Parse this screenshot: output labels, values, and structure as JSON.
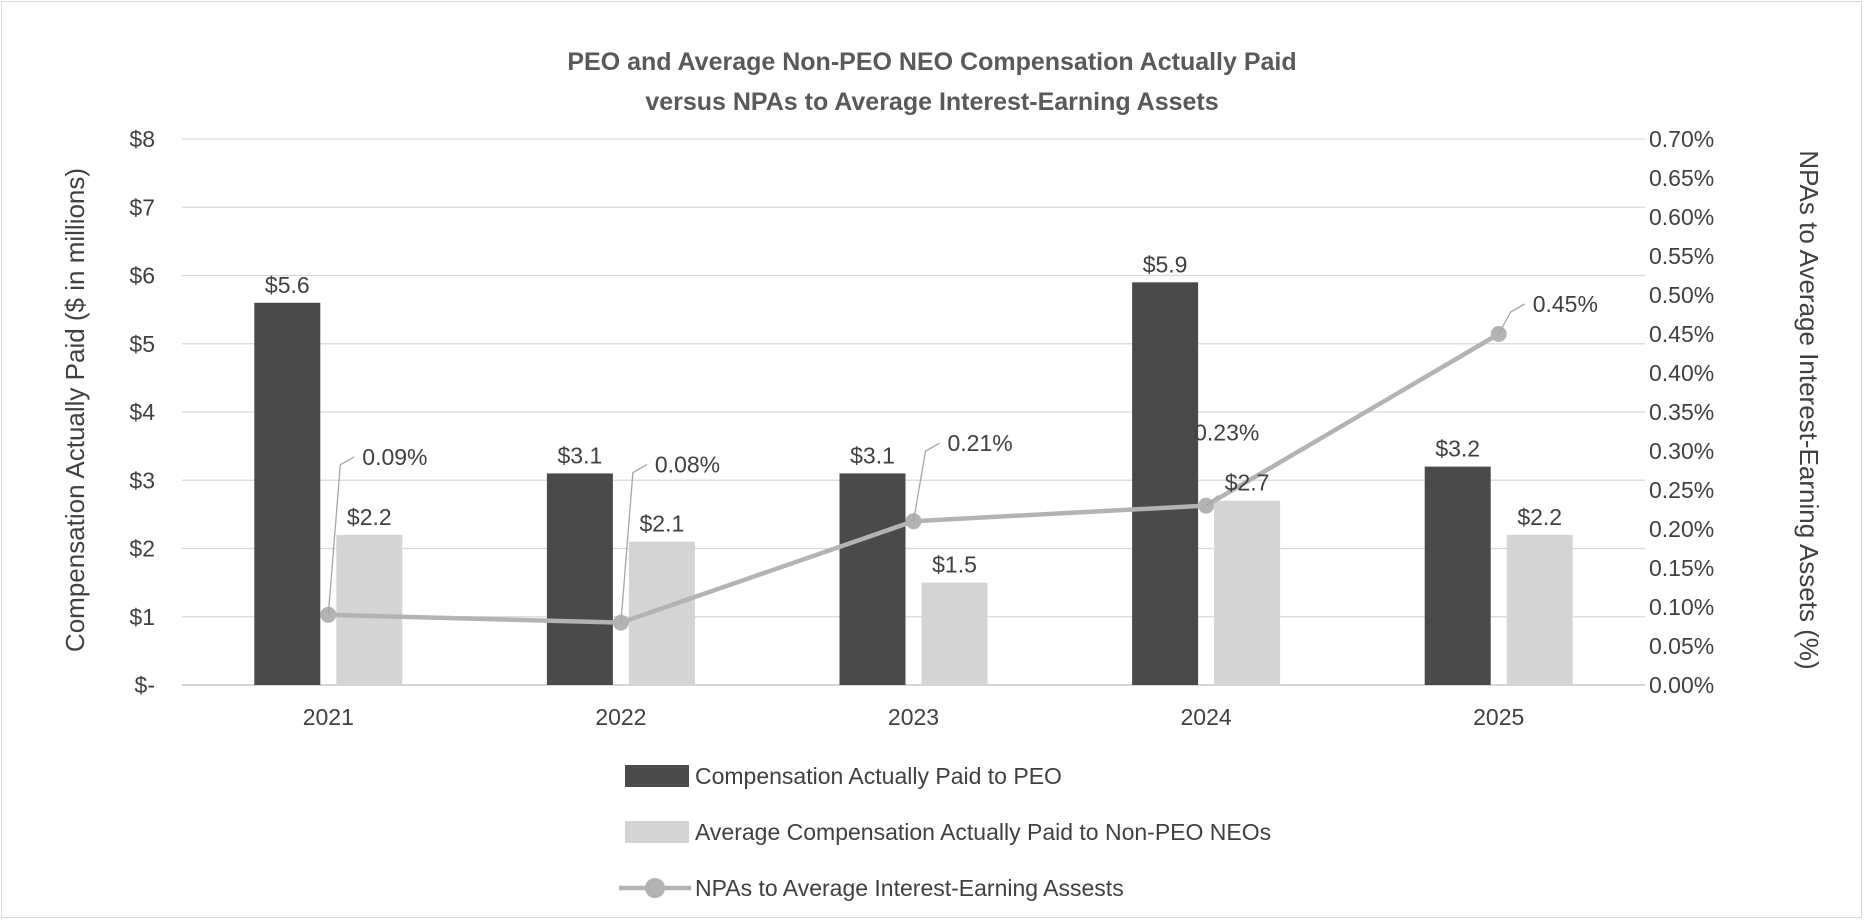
{
  "chart_data": {
    "type": "bar",
    "title": "PEO and Average Non-PEO NEO Compensation Actually Paid",
    "subtitle": "versus NPAs to Average Interest-Earning Assets",
    "ylabel": "Compensation Actually Paid ($ in millions)",
    "y2label": "NPAs to Average Interest-Earning Assets (%)",
    "categories": [
      "2021",
      "2022",
      "2023",
      "2024",
      "2025"
    ],
    "ylim": [
      0,
      8
    ],
    "y2lim": [
      0,
      0.7
    ],
    "yticks": [
      "$-",
      "$1",
      "$2",
      "$3",
      "$4",
      "$5",
      "$6",
      "$7",
      "$8"
    ],
    "y2ticks": [
      "0.00%",
      "0.05%",
      "0.10%",
      "0.15%",
      "0.20%",
      "0.25%",
      "0.30%",
      "0.35%",
      "0.40%",
      "0.45%",
      "0.50%",
      "0.55%",
      "0.60%",
      "0.65%",
      "0.70%"
    ],
    "grid": true,
    "legend_position": "bottom",
    "series": [
      {
        "name": "Compensation Actually Paid to PEO",
        "kind": "bar",
        "axis": "left",
        "color": "#4a4a4a",
        "values": [
          5.6,
          3.1,
          3.1,
          5.9,
          3.2
        ],
        "labels": [
          "$5.6",
          "$3.1",
          "$3.1",
          "$5.9",
          "$3.2"
        ]
      },
      {
        "name": "Average Compensation Actually Paid to Non-PEO NEOs",
        "kind": "bar",
        "axis": "left",
        "color": "#d4d4d4",
        "values": [
          2.2,
          2.1,
          1.5,
          2.7,
          2.2
        ],
        "labels": [
          "$2.2",
          "$2.1",
          "$1.5",
          "$2.7",
          "$2.2"
        ]
      },
      {
        "name": "NPAs to Average Interest-Earning Assests",
        "kind": "line",
        "axis": "right",
        "color": "#b3b3b3",
        "values": [
          0.09,
          0.08,
          0.21,
          0.23,
          0.45
        ],
        "labels": [
          "0.09%",
          "0.08%",
          "0.21%",
          "0.23%",
          "0.45%"
        ]
      }
    ]
  }
}
